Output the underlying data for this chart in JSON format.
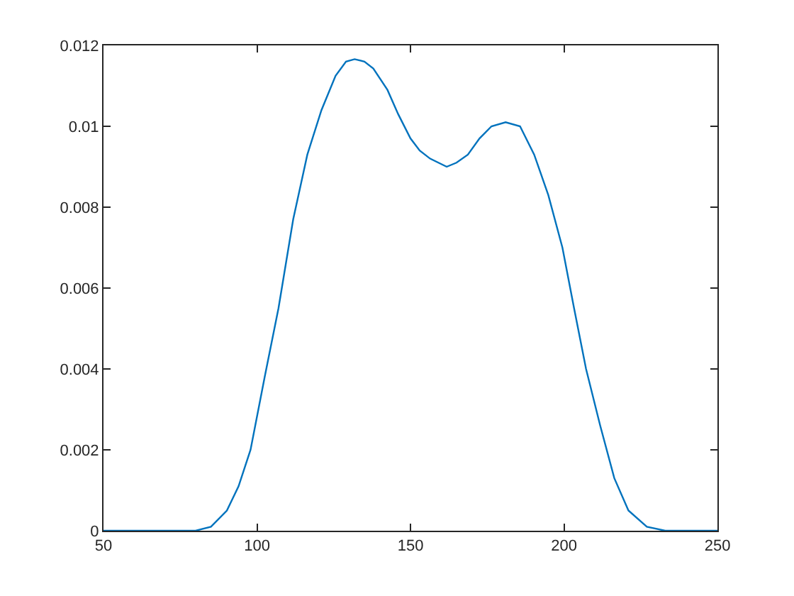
{
  "chart_data": {
    "type": "line",
    "x": [
      50,
      70,
      80,
      85,
      90.2,
      94,
      97.9,
      102.5,
      107,
      111.8,
      116.4,
      121,
      125.6,
      129,
      131.8,
      135,
      137.9,
      142.5,
      146,
      150,
      153,
      156.4,
      161.8,
      165,
      168.7,
      172.5,
      176.4,
      181,
      185.7,
      190.3,
      194.9,
      199.5,
      203.3,
      207.2,
      211.8,
      216.4,
      221,
      227,
      233,
      250
    ],
    "values": [
      0,
      0,
      0,
      0.0001,
      0.0005,
      0.0011,
      0.002,
      0.0038,
      0.0055,
      0.0077,
      0.0093,
      0.0104,
      0.01125,
      0.0116,
      0.01166,
      0.0116,
      0.01143,
      0.0109,
      0.0103,
      0.0097,
      0.0094,
      0.0092,
      0.009,
      0.0091,
      0.0093,
      0.0097,
      0.01,
      0.0101,
      0.01,
      0.0093,
      0.0083,
      0.007,
      0.0055,
      0.004,
      0.0026,
      0.0013,
      0.0005,
      0.0001,
      0,
      0
    ],
    "color": "#0072bd",
    "xlim": [
      50,
      250
    ],
    "xticks": [
      50,
      100,
      150,
      200,
      250
    ],
    "ylim": [
      0,
      0.012
    ],
    "yticks": [
      0,
      0.002,
      0.004,
      0.006,
      0.008,
      0.01,
      0.012
    ]
  }
}
